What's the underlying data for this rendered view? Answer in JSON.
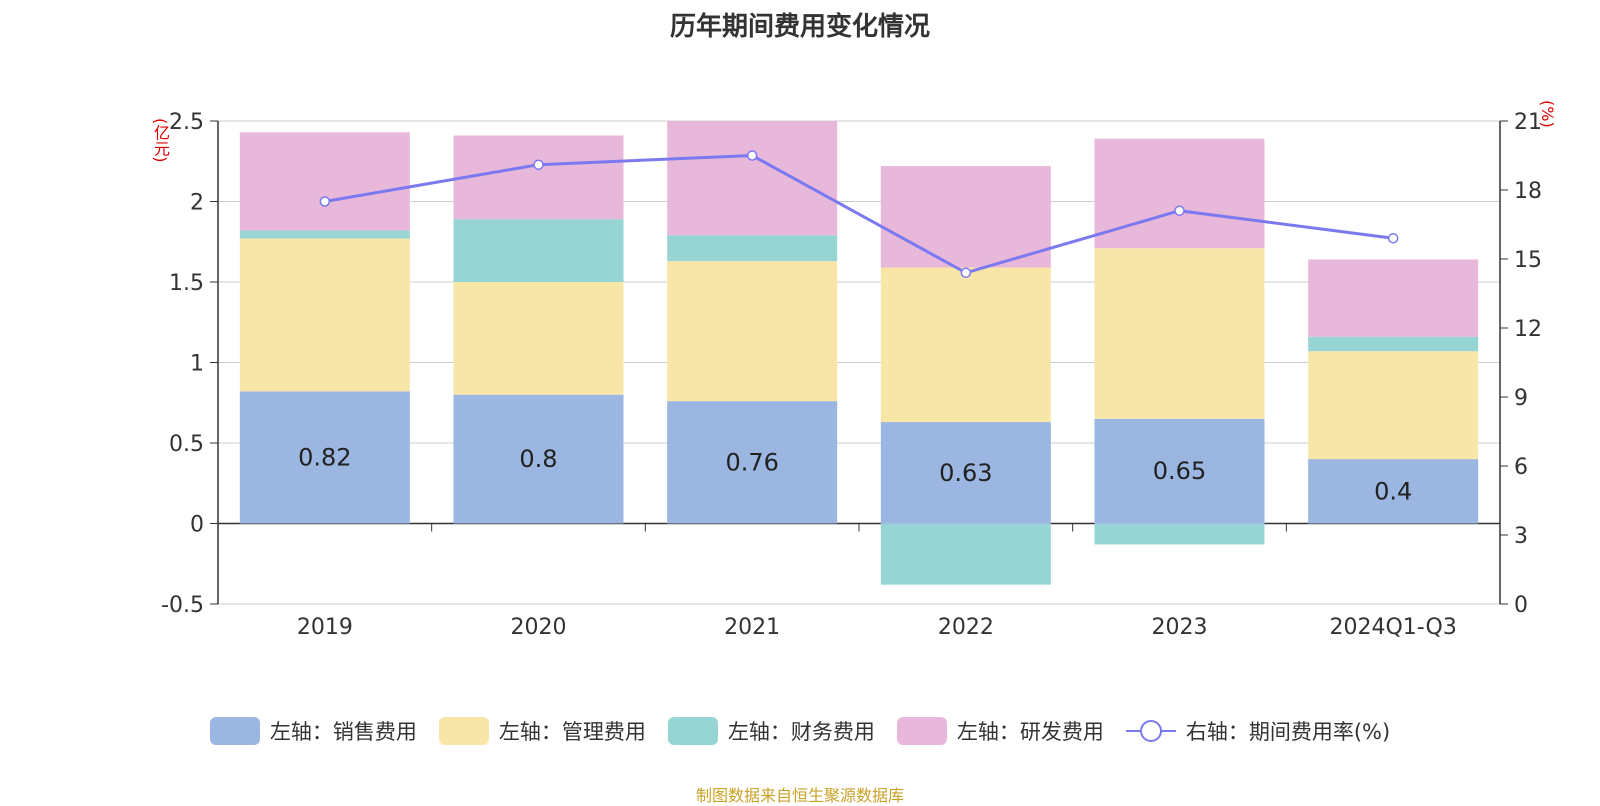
{
  "chart_data": {
    "type": "bar",
    "title": "历年期间费用变化情况",
    "categories": [
      "2019",
      "2020",
      "2021",
      "2022",
      "2023",
      "2024Q1-Q3"
    ],
    "left_axis_unit": "(亿元)",
    "right_axis_unit": "(%)",
    "ylim_left": [
      -0.5,
      2.5
    ],
    "ylim_right": [
      0,
      21
    ],
    "yticks_left": [
      "2.5",
      "2",
      "1.5",
      "1",
      "0.5",
      "0",
      "-0.5"
    ],
    "yticks_right": [
      "21",
      "18",
      "15",
      "12",
      "9",
      "6",
      "3",
      "0"
    ],
    "series": [
      {
        "name": "左轴：销售费用",
        "axis": "left",
        "stack": true,
        "color": "#9bb6e0",
        "values": [
          0.82,
          0.8,
          0.76,
          0.63,
          0.65,
          0.4
        ],
        "labels": [
          "0.82",
          "0.8",
          "0.76",
          "0.63",
          "0.65",
          "0.4"
        ]
      },
      {
        "name": "左轴：管理费用",
        "axis": "left",
        "stack": true,
        "color": "#f8e6a8",
        "values": [
          0.95,
          0.7,
          0.87,
          0.96,
          1.06,
          0.67
        ]
      },
      {
        "name": "左轴：财务费用",
        "axis": "left",
        "stack": true,
        "color": "#97d4d4",
        "values": [
          0.05,
          0.39,
          0.16,
          -0.38,
          -0.13,
          0.09
        ]
      },
      {
        "name": "左轴：研发费用",
        "axis": "left",
        "stack": true,
        "color": "#e8b8da",
        "values": [
          0.61,
          0.52,
          0.71,
          0.63,
          0.68,
          0.48
        ]
      },
      {
        "name": "右轴：期间费用率(%)",
        "axis": "right",
        "type": "line",
        "color": "#7b79f0",
        "values": [
          17.5,
          19.1,
          19.5,
          14.4,
          17.1,
          15.9
        ]
      }
    ],
    "grid": true,
    "legend_position": "bottom"
  },
  "source": "制图数据来自恒生聚源数据库"
}
